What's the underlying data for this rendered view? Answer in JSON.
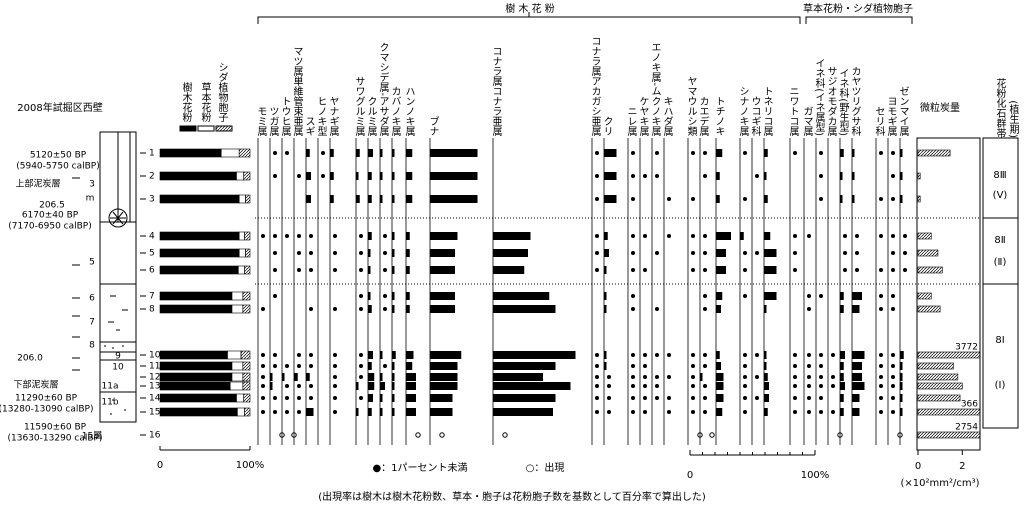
{
  "group_headers": {
    "arboreal": "樹 木 花 粉",
    "herb": "草本花粉・シダ植物胞子"
  },
  "section": {
    "title": "2008年試掘区西壁",
    "labels": [
      "5120±50 BP",
      "(5940-5750 calBP)",
      "上部泥炭層",
      "3",
      "m",
      "206.5",
      "6170±40 BP",
      "(7170-6950 calBP)",
      "5",
      "6",
      "7",
      "8",
      "206.0",
      "9",
      "10",
      "11a",
      "11b",
      "下部泥炭層",
      "11290±60 BP",
      "(13280-13090 calBP)",
      "11590±60 BP",
      "(13630-13290 calBP)",
      "15層"
    ]
  },
  "samples": [
    "1",
    "2",
    "3",
    "4",
    "5",
    "6",
    "7",
    "8",
    "10",
    "11",
    "12",
    "13",
    "14",
    "15",
    "16"
  ],
  "summary": {
    "labels": [
      "樹木花粉",
      "草本花粉",
      "シダ植物胞子"
    ],
    "arboreal": [
      68,
      85,
      88,
      88,
      88,
      87,
      80,
      80,
      75,
      80,
      80,
      78,
      85,
      86,
      null
    ],
    "herb": [
      20,
      8,
      7,
      6,
      7,
      7,
      12,
      12,
      15,
      12,
      12,
      14,
      8,
      8,
      null
    ],
    "fern": [
      12,
      7,
      5,
      6,
      5,
      6,
      8,
      8,
      10,
      8,
      8,
      8,
      7,
      6,
      null
    ],
    "xticks": [
      0,
      {
        "value": 100,
        "label": "100%"
      }
    ]
  },
  "taxa": [
    {
      "name": "モミ属",
      "group": "arboreal",
      "values": [
        null,
        null,
        null,
        0.5,
        null,
        null,
        null,
        0.5,
        0.5,
        0.5,
        0.5,
        0.5,
        0.5,
        0.5,
        null
      ]
    },
    {
      "name": "ツガ属",
      "group": "arboreal",
      "values": [
        0.5,
        0.5,
        null,
        0.5,
        0.5,
        0.5,
        0.5,
        null,
        0.5,
        0.5,
        2,
        2,
        0.5,
        0.5,
        null
      ],
      "found": [
        "16"
      ]
    },
    {
      "name": "トウヒ属",
      "group": "arboreal",
      "values": [
        0.5,
        null,
        null,
        0.5,
        null,
        null,
        null,
        null,
        null,
        0.5,
        2,
        0.5,
        0.5,
        0.5,
        null
      ],
      "found": [
        "16"
      ]
    },
    {
      "name": "マツ属単維管束亜属",
      "group": "arboreal",
      "values": [
        null,
        0.5,
        null,
        0.5,
        0.5,
        0.5,
        null,
        null,
        0.5,
        0.5,
        3,
        0.5,
        0.5,
        0.5,
        null
      ]
    },
    {
      "name": "スギ",
      "group": "arboreal",
      "values": [
        3,
        4,
        4,
        0.5,
        0.5,
        0.5,
        null,
        0.5,
        0.5,
        0.5,
        3,
        0.5,
        0.5,
        6,
        null
      ]
    },
    {
      "name": "ヒノキ型",
      "group": "arboreal",
      "values": [
        0.5,
        0.5,
        null,
        null,
        null,
        null,
        null,
        null,
        null,
        null,
        null,
        null,
        null,
        null,
        null
      ]
    },
    {
      "name": "ヤナギ属",
      "group": "arboreal",
      "values": [
        3,
        3,
        3,
        0.5,
        0.5,
        0.5,
        null,
        0.5,
        0.5,
        0.5,
        0.5,
        0.5,
        0.5,
        0.5,
        null
      ]
    },
    {
      "name": "サワグルミ属",
      "group": "arboreal",
      "values": [
        3,
        2,
        3,
        0.5,
        0.5,
        0.5,
        0.5,
        0.5,
        0.5,
        0.5,
        0.5,
        2,
        0.5,
        2,
        null
      ]
    },
    {
      "name": "クルミ属",
      "group": "arboreal",
      "values": [
        4,
        3,
        3,
        3,
        2,
        2,
        2,
        3,
        4,
        3,
        5,
        5,
        4,
        3,
        null
      ]
    },
    {
      "name": "クマシデ属-アサダ属",
      "group": "arboreal",
      "values": [
        2,
        2,
        2,
        0.5,
        0.5,
        0.5,
        0.5,
        0.5,
        2,
        0.5,
        2,
        4,
        2,
        2,
        null
      ]
    },
    {
      "name": "カバノキ属",
      "group": "arboreal",
      "values": [
        2,
        2,
        2,
        2,
        2,
        2,
        2,
        2,
        3,
        2,
        2,
        2,
        2,
        2,
        null
      ]
    },
    {
      "name": "ハンノキ属",
      "group": "arboreal",
      "values": [
        5,
        5,
        5,
        3,
        3,
        3,
        3,
        3,
        6,
        5,
        8,
        8,
        8,
        8,
        null
      ],
      "found": [
        "16"
      ]
    },
    {
      "name": "ブナ",
      "group": "arboreal",
      "values": [
        38,
        38,
        38,
        22,
        20,
        20,
        20,
        20,
        25,
        22,
        22,
        22,
        18,
        18,
        null
      ],
      "found": [
        "16"
      ]
    },
    {
      "name": "コナラ属コナラ亜属",
      "group": "arboreal",
      "values": [
        null,
        null,
        null,
        30,
        28,
        25,
        45,
        50,
        66,
        50,
        40,
        62,
        50,
        48,
        null
      ],
      "found": [
        "16"
      ]
    },
    {
      "name": "コナラ属アカガシ亜属",
      "group": "arboreal",
      "values": [
        0.5,
        0.5,
        0.5,
        0.5,
        0.5,
        0.5,
        null,
        null,
        0.5,
        0.5,
        0.5,
        0.5,
        0.5,
        0.5,
        null
      ]
    },
    {
      "name": "クリ",
      "group": "arboreal",
      "values": [
        10,
        10,
        10,
        3,
        4,
        2,
        2,
        2,
        2,
        2,
        0.5,
        0.5,
        0.5,
        0.5,
        null
      ]
    },
    {
      "name": "ニレ属",
      "group": "arboreal",
      "values": [
        0.5,
        0.5,
        0.5,
        0.5,
        0.5,
        0.5,
        0.5,
        0.5,
        0.5,
        0.5,
        0.5,
        0.5,
        0.5,
        0.5,
        null
      ]
    },
    {
      "name": "ケヤキ属",
      "group": "arboreal",
      "values": [
        null,
        0.5,
        null,
        0.5,
        null,
        0.5,
        null,
        null,
        0.5,
        0.5,
        0.5,
        0.5,
        0.5,
        0.5,
        null
      ]
    },
    {
      "name": "エノキ属-ムクノキ属",
      "group": "arboreal",
      "values": [
        0.5,
        0.5,
        null,
        null,
        0.5,
        null,
        null,
        0.5,
        0.5,
        null,
        0.5,
        0.5,
        0.5,
        null,
        null
      ]
    },
    {
      "name": "キハダ属",
      "group": "arboreal",
      "values": [
        null,
        null,
        0.5,
        0.5,
        null,
        null,
        null,
        null,
        0.5,
        null,
        0.5,
        null,
        0.5,
        0.5,
        null
      ]
    },
    {
      "name": "ヤマウルシ類",
      "group": "arboreal",
      "values": [
        0.5,
        null,
        0.5,
        0.5,
        0.5,
        0.5,
        null,
        null,
        0.5,
        0.5,
        0.5,
        0.5,
        0.5,
        0.5,
        null
      ],
      "found": [
        "16"
      ]
    },
    {
      "name": "カエデ属",
      "group": "arboreal",
      "values": [
        0.5,
        0.5,
        null,
        0.5,
        0.5,
        0.5,
        0.5,
        0.5,
        0.5,
        0.5,
        2,
        0.5,
        0.5,
        0.5,
        null
      ],
      "found": [
        "16"
      ]
    },
    {
      "name": "トチノキ",
      "group": "arboreal",
      "values": [
        5,
        3,
        3,
        12,
        8,
        8,
        5,
        4,
        3,
        4,
        6,
        6,
        6,
        5,
        null
      ]
    },
    {
      "name": "シナノキ属",
      "group": "arboreal",
      "values": [
        0.5,
        null,
        0.5,
        3,
        0.5,
        0.5,
        0.5,
        null,
        0.5,
        0.5,
        0.5,
        0.5,
        0.5,
        0.5,
        null
      ]
    },
    {
      "name": "ウコギ科",
      "group": "arboreal",
      "values": [
        null,
        0.5,
        null,
        null,
        0.5,
        null,
        null,
        null,
        0.5,
        null,
        0.5,
        null,
        0.5,
        null,
        null
      ]
    },
    {
      "name": "トネリコ属",
      "group": "arboreal",
      "values": [
        3,
        2,
        3,
        5,
        10,
        10,
        10,
        2,
        2,
        2,
        3,
        4,
        4,
        3,
        null
      ]
    },
    {
      "name": "ニワトコ属",
      "group": "arboreal",
      "values": [
        0.5,
        null,
        null,
        0.5,
        0.5,
        0.5,
        null,
        null,
        0.5,
        0.5,
        0.5,
        0.5,
        0.5,
        0.5,
        null
      ]
    },
    {
      "name": "ガマ属",
      "group": "herb",
      "values": [
        null,
        null,
        null,
        0.5,
        null,
        null,
        0.5,
        0.5,
        0.5,
        0.5,
        0.5,
        0.5,
        0.5,
        0.5,
        null
      ]
    },
    {
      "name": "イネ科(イネ属型)",
      "group": "herb",
      "values": [
        0.5,
        0.5,
        0.5,
        null,
        null,
        null,
        0.5,
        null,
        0.5,
        0.5,
        0.5,
        0.5,
        0.5,
        0.5,
        null
      ]
    },
    {
      "name": "サジオモダカ属",
      "group": "herb",
      "values": [
        null,
        null,
        null,
        null,
        null,
        null,
        null,
        null,
        0.5,
        null,
        0.5,
        0.5,
        null,
        0.5,
        null
      ],
      "found": [
        "16"
      ]
    },
    {
      "name": "イネ科(野生型)",
      "group": "herb",
      "values": [
        3,
        2,
        2,
        0.5,
        0.5,
        0.5,
        3,
        3,
        4,
        3,
        3,
        4,
        3,
        3,
        null
      ]
    },
    {
      "name": "カヤツリグサ科",
      "group": "herb",
      "values": [
        2,
        2,
        2,
        0.5,
        0.5,
        0.5,
        8,
        6,
        10,
        8,
        8,
        10,
        6,
        6,
        null
      ]
    },
    {
      "name": "セリ科",
      "group": "herb",
      "values": [
        0.5,
        null,
        0.5,
        0.5,
        null,
        0.5,
        0.5,
        0.5,
        0.5,
        0.5,
        0.5,
        0.5,
        0.5,
        0.5,
        null
      ]
    },
    {
      "name": "ヨモギ属",
      "group": "herb",
      "values": [
        0.5,
        0.5,
        0.5,
        0.5,
        0.5,
        0.5,
        0.5,
        0.5,
        0.5,
        0.5,
        0.5,
        0.5,
        0.5,
        0.5,
        null
      ],
      "found": [
        "16"
      ]
    },
    {
      "name": "ゼンマイ属",
      "group": "herb",
      "values": [
        2,
        2,
        2,
        0.5,
        0.5,
        0.5,
        null,
        null,
        3,
        2,
        2,
        2,
        2,
        2,
        null
      ]
    }
  ],
  "taxa_axis": {
    "xticks": [
      0,
      {
        "value": 100,
        "label": "100%"
      }
    ]
  },
  "legend": {
    "dot": "●：1パーセント未満",
    "circle": "○：出現"
  },
  "charcoal": {
    "title": "微粒炭量",
    "unit": "(×10²mm²/cm³)",
    "xlim": [
      0,
      2.8
    ],
    "xticks": [
      0,
      2
    ],
    "values": [
      1.45,
      0.1,
      0.1,
      0.6,
      0.9,
      1.1,
      0.6,
      1.0,
      37.72,
      1.6,
      1.8,
      2.0,
      1.9,
      3.66,
      27.54
    ],
    "value_labels": [
      null,
      null,
      null,
      null,
      null,
      null,
      null,
      null,
      "3772",
      null,
      null,
      null,
      null,
      "366",
      "2754"
    ]
  },
  "zones": {
    "title": "花粉化石群帯",
    "subtitle": "(植生期)",
    "items": [
      {
        "zone": "8Ⅲ",
        "period": "(Ⅴ)"
      },
      {
        "zone": "8Ⅱ",
        "period": "(Ⅱ)"
      },
      {
        "zone": "8Ⅰ",
        "period": "(Ⅰ)"
      }
    ]
  },
  "footnote": "(出現率は樹木は樹木花粉数、草本・胞子は花粉胞子数を基数として百分率で算出した)"
}
